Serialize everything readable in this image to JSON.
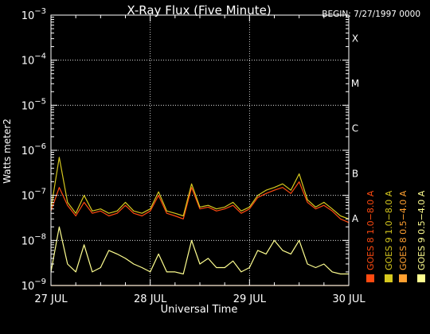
{
  "chart_data": {
    "type": "line",
    "title": "X-Ray Flux (Five Minute)",
    "begin_label": "BEGIN: 7/27/1997 0000",
    "xlabel": "Universal Time",
    "ylabel": "Watts meter2",
    "y_scale": "log",
    "ylim": [
      1e-09,
      0.001
    ],
    "xlim": [
      "1997-07-27 00:00",
      "1997-07-30 00:00"
    ],
    "grid": true,
    "x_ticks": [
      {
        "value": "1997-07-27 00:00",
        "label": "27 JUL"
      },
      {
        "value": "1997-07-28 00:00",
        "label": "28 JUL"
      },
      {
        "value": "1997-07-29 00:00",
        "label": "29 JUL"
      },
      {
        "value": "1997-07-30 00:00",
        "label": "30 JUL"
      }
    ],
    "y_ticks": [
      {
        "value": 0.001,
        "base": "10",
        "exp": "−3"
      },
      {
        "value": 0.0001,
        "base": "10",
        "exp": "−4"
      },
      {
        "value": 1e-05,
        "base": "10",
        "exp": "−5"
      },
      {
        "value": 1e-06,
        "base": "10",
        "exp": "−6"
      },
      {
        "value": 1e-07,
        "base": "10",
        "exp": "−7"
      },
      {
        "value": 1e-08,
        "base": "10",
        "exp": "−8"
      },
      {
        "value": 1e-09,
        "base": "10",
        "exp": "−9"
      }
    ],
    "flare_classes": [
      {
        "label": "X",
        "value": 0.0001
      },
      {
        "label": "M",
        "value": 1e-05
      },
      {
        "label": "C",
        "value": 1e-06
      },
      {
        "label": "B",
        "value": 1e-07
      },
      {
        "label": "A",
        "value": 1e-08
      }
    ],
    "legend_position": "right",
    "series": [
      {
        "name": "GOES 8  1.0−8.0 A",
        "color": "#ff4a10",
        "x": [
          "1997-07-27 00:00",
          "1997-07-27 02:00",
          "1997-07-27 04:00",
          "1997-07-27 06:00",
          "1997-07-27 08:00",
          "1997-07-27 10:00",
          "1997-07-27 12:00",
          "1997-07-27 14:00",
          "1997-07-27 16:00",
          "1997-07-27 18:00",
          "1997-07-27 20:00",
          "1997-07-27 22:00",
          "1997-07-28 00:00",
          "1997-07-28 02:00",
          "1997-07-28 04:00",
          "1997-07-28 06:00",
          "1997-07-28 08:00",
          "1997-07-28 10:00",
          "1997-07-28 12:00",
          "1997-07-28 14:00",
          "1997-07-28 16:00",
          "1997-07-28 18:00",
          "1997-07-28 20:00",
          "1997-07-28 22:00",
          "1997-07-29 00:00",
          "1997-07-29 02:00",
          "1997-07-29 04:00",
          "1997-07-29 06:00",
          "1997-07-29 08:00",
          "1997-07-29 10:00",
          "1997-07-29 12:00",
          "1997-07-29 14:00",
          "1997-07-29 16:00",
          "1997-07-29 18:00",
          "1997-07-29 20:00",
          "1997-07-29 22:00",
          "1997-07-30 00:00"
        ],
        "values": [
          4.5e-08,
          1.5e-07,
          6e-08,
          3.5e-08,
          7e-08,
          4e-08,
          4.5e-08,
          3.5e-08,
          4e-08,
          6e-08,
          4e-08,
          3.5e-08,
          4.5e-08,
          1e-07,
          4e-08,
          3.5e-08,
          3e-08,
          1.5e-07,
          5e-08,
          5.5e-08,
          4.5e-08,
          5e-08,
          6e-08,
          4e-08,
          5e-08,
          9e-08,
          1.1e-07,
          1.3e-07,
          1.5e-07,
          1.1e-07,
          2e-07,
          7e-08,
          5e-08,
          6e-08,
          4.5e-08,
          3e-08,
          2.5e-08
        ]
      },
      {
        "name": "GOES 8  0.5−4.0 A",
        "color": "#ffa030",
        "x": [
          "1997-07-27 00:00",
          "1997-07-27 08:00",
          "1997-07-27 16:00",
          "1997-07-28 00:00",
          "1997-07-28 08:00",
          "1997-07-28 16:00",
          "1997-07-29 00:00",
          "1997-07-29 08:00",
          "1997-07-29 16:00",
          "1997-07-30 00:00"
        ],
        "values": [
          1e-09,
          1e-09,
          1e-09,
          1e-09,
          1e-09,
          1e-09,
          1e-09,
          1e-09,
          1e-09,
          1e-09
        ]
      },
      {
        "name": "GOES 9  1.0−8.0 A",
        "color": "#d6c81e",
        "x": [
          "1997-07-27 00:00",
          "1997-07-27 02:00",
          "1997-07-27 04:00",
          "1997-07-27 06:00",
          "1997-07-27 08:00",
          "1997-07-27 10:00",
          "1997-07-27 12:00",
          "1997-07-27 14:00",
          "1997-07-27 16:00",
          "1997-07-27 18:00",
          "1997-07-27 20:00",
          "1997-07-27 22:00",
          "1997-07-28 00:00",
          "1997-07-28 02:00",
          "1997-07-28 04:00",
          "1997-07-28 06:00",
          "1997-07-28 08:00",
          "1997-07-28 10:00",
          "1997-07-28 12:00",
          "1997-07-28 14:00",
          "1997-07-28 16:00",
          "1997-07-28 18:00",
          "1997-07-28 20:00",
          "1997-07-28 22:00",
          "1997-07-29 00:00",
          "1997-07-29 02:00",
          "1997-07-29 04:00",
          "1997-07-29 06:00",
          "1997-07-29 08:00",
          "1997-07-29 10:00",
          "1997-07-29 12:00",
          "1997-07-29 14:00",
          "1997-07-29 16:00",
          "1997-07-29 18:00",
          "1997-07-29 20:00",
          "1997-07-29 22:00",
          "1997-07-30 00:00"
        ],
        "values": [
          5e-08,
          7e-07,
          7e-08,
          4e-08,
          1e-07,
          4.5e-08,
          5e-08,
          4e-08,
          4.5e-08,
          7e-08,
          4.5e-08,
          4e-08,
          5e-08,
          1.2e-07,
          4.5e-08,
          4e-08,
          3.5e-08,
          1.8e-07,
          5.5e-08,
          6e-08,
          5e-08,
          5.5e-08,
          7e-08,
          4.5e-08,
          5.5e-08,
          1e-07,
          1.3e-07,
          1.5e-07,
          1.8e-07,
          1.3e-07,
          3e-07,
          8e-08,
          5.5e-08,
          7e-08,
          5e-08,
          3.5e-08,
          3e-08
        ]
      },
      {
        "name": "GOES 9  0.5−4.0 A",
        "color": "#ffff90",
        "x": [
          "1997-07-27 00:00",
          "1997-07-27 02:00",
          "1997-07-27 04:00",
          "1997-07-27 06:00",
          "1997-07-27 08:00",
          "1997-07-27 10:00",
          "1997-07-27 12:00",
          "1997-07-27 14:00",
          "1997-07-27 16:00",
          "1997-07-27 18:00",
          "1997-07-27 20:00",
          "1997-07-27 22:00",
          "1997-07-28 00:00",
          "1997-07-28 02:00",
          "1997-07-28 04:00",
          "1997-07-28 06:00",
          "1997-07-28 08:00",
          "1997-07-28 10:00",
          "1997-07-28 12:00",
          "1997-07-28 14:00",
          "1997-07-28 16:00",
          "1997-07-28 18:00",
          "1997-07-28 20:00",
          "1997-07-28 22:00",
          "1997-07-29 00:00",
          "1997-07-29 02:00",
          "1997-07-29 04:00",
          "1997-07-29 06:00",
          "1997-07-29 08:00",
          "1997-07-29 10:00",
          "1997-07-29 12:00",
          "1997-07-29 14:00",
          "1997-07-29 16:00",
          "1997-07-29 18:00",
          "1997-07-29 20:00",
          "1997-07-29 22:00",
          "1997-07-30 00:00"
        ],
        "values": [
          2e-09,
          2e-08,
          3e-09,
          2e-09,
          8e-09,
          2e-09,
          2.5e-09,
          6e-09,
          5e-09,
          4e-09,
          3e-09,
          2.5e-09,
          2e-09,
          5e-09,
          2e-09,
          2e-09,
          1.8e-09,
          1e-08,
          3e-09,
          4e-09,
          2.5e-09,
          2.5e-09,
          3.5e-09,
          2e-09,
          2.5e-09,
          6e-09,
          5e-09,
          1e-08,
          6e-09,
          5e-09,
          1e-08,
          3e-09,
          2.5e-09,
          3e-09,
          2e-09,
          1.8e-09,
          1.8e-09
        ]
      }
    ]
  }
}
